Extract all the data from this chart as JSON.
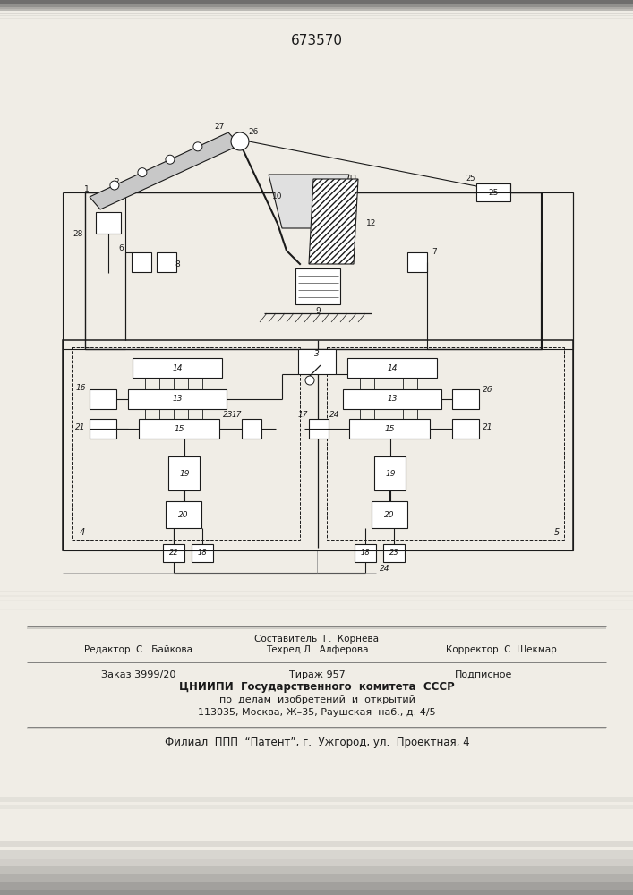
{
  "patent_number": "673570",
  "bg_color": "#f0ede6",
  "paper_color": "#f5f2ec",
  "line_color": "#1a1a1a",
  "footer_sestavitel": "Составитель  Г.  Корнева",
  "footer_redaktor": "Редактор  С.  Байкова",
  "footer_tehred": "Техред Л.  Алферова",
  "footer_korrektor": "Корректор  С. Шекмар",
  "footer_zakaz": "Заказ 3999/20",
  "footer_tirazh": "Тираж 957",
  "footer_podpisnoe": "Подписное",
  "footer_tsniipи": "ЦНИИПИ  Государственного  комитета  СССР",
  "footer_po_delam": "по  делам  изобретений  и  открытий",
  "footer_addr": "113035, Москва, Ж–35, Раушская  наб., д. 4/5",
  "footer_filial": "Филиал  ППП  “Патент”, г.  Ужгород, ул.  Проектная, 4"
}
